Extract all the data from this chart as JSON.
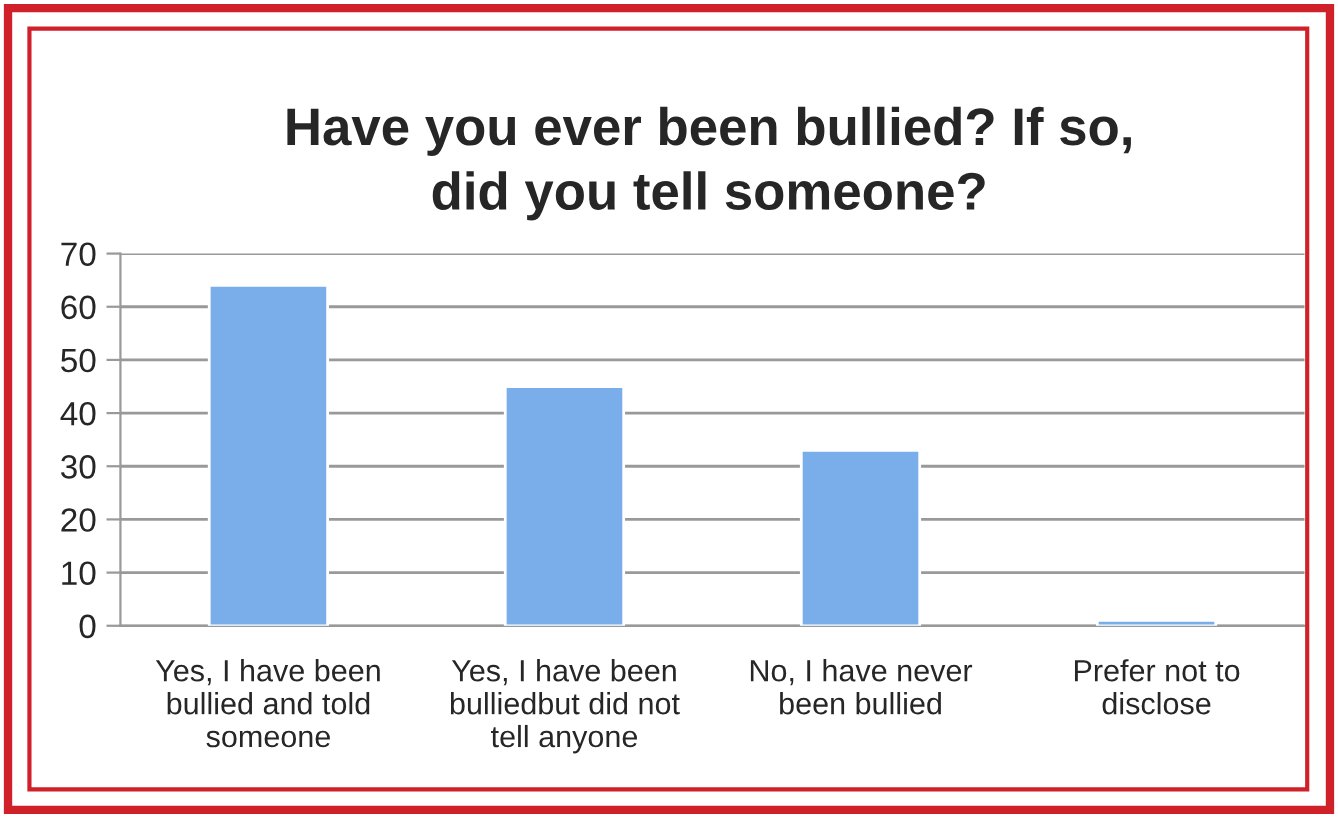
{
  "chart_data": {
    "type": "bar",
    "title": "Have you ever been bullied? If so,\ndid you tell someone?",
    "categories": [
      "Yes, I have been\nbullied and told\nsomeone",
      "Yes, I have been\nbulliedbut did not\ntell anyone",
      "No, I have never\nbeen bullied",
      "Prefer not to\ndisclose"
    ],
    "values": [
      64,
      45,
      33,
      1
    ],
    "color": "#7aaeea",
    "ylim": [
      0,
      70
    ],
    "yticks": [
      0,
      10,
      20,
      30,
      40,
      50,
      60,
      70
    ],
    "grid": "y",
    "legend": false
  }
}
